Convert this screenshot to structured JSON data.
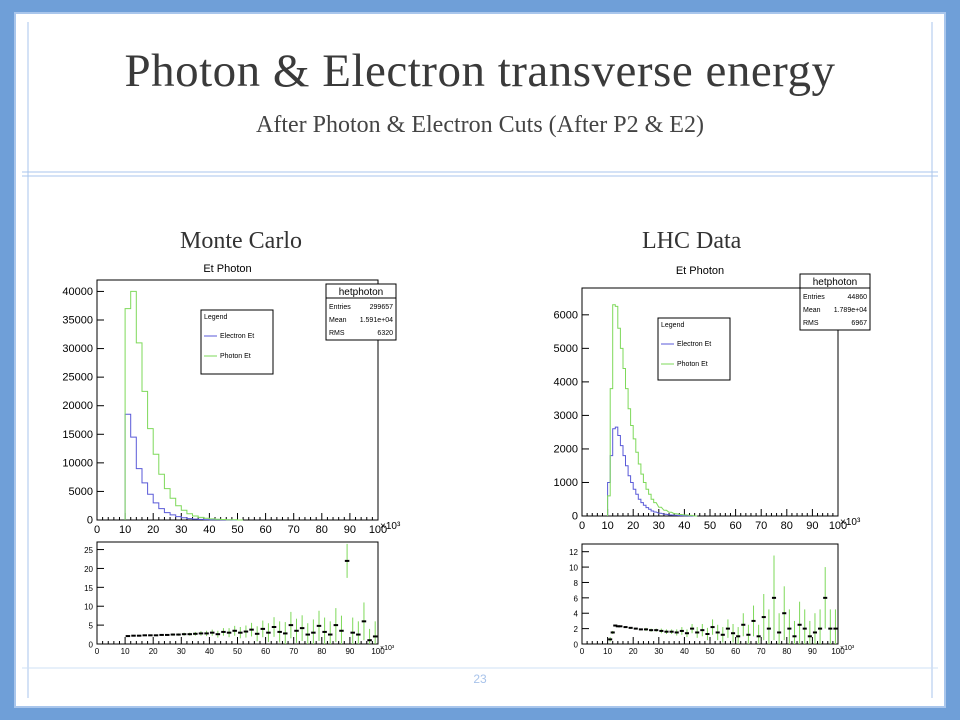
{
  "slide": {
    "title": "Photon & Electron transverse energy",
    "subtitle": "After Photon & Electron Cuts (After P2 & E2)",
    "page_number": "23",
    "colors": {
      "background": "#6f9fd8",
      "electron": "#5a5ad8",
      "photon": "#7ed95a",
      "ratio_points": "#000000"
    }
  },
  "chart_data": [
    {
      "id": "mc-main",
      "caption": "Monte Carlo",
      "type": "line",
      "step": true,
      "title": "Et Photon",
      "stats": {
        "name": "hetphoton",
        "rows": [
          {
            "label": "Entries",
            "value": "299657"
          },
          {
            "label": "Mean",
            "value": "1.591e+04"
          },
          {
            "label": "RMS",
            "value": "6320"
          }
        ]
      },
      "legend": {
        "title": "Legend",
        "position": "upper-middle"
      },
      "x_tick_labels": [
        "0",
        "10",
        "20",
        "30",
        "40",
        "50",
        "60",
        "70",
        "80",
        "90",
        "100"
      ],
      "x_scale_label": "×10³",
      "xlim": [
        0,
        100000
      ],
      "ylim": [
        0,
        42000
      ],
      "y_ticks": [
        0,
        5000,
        10000,
        15000,
        20000,
        25000,
        30000,
        35000,
        40000
      ],
      "bin_width": 2000,
      "series": [
        {
          "name": "Electron Et",
          "x": [
            10000,
            12000,
            14000,
            16000,
            18000,
            20000,
            22000,
            24000,
            26000,
            28000,
            30000,
            32000,
            34000,
            36000,
            38000,
            40000,
            42000,
            44000,
            46000,
            48000,
            50000
          ],
          "values": [
            18500,
            14500,
            9000,
            6500,
            4500,
            3000,
            2000,
            1300,
            900,
            600,
            400,
            250,
            150,
            100,
            70,
            40,
            30,
            20,
            10,
            5,
            0
          ]
        },
        {
          "name": "Photon Et",
          "x": [
            10000,
            12000,
            14000,
            16000,
            18000,
            20000,
            22000,
            24000,
            26000,
            28000,
            30000,
            32000,
            34000,
            36000,
            38000,
            40000,
            42000,
            44000,
            46000,
            48000,
            50000
          ],
          "values": [
            37000,
            40000,
            31000,
            22500,
            16000,
            11500,
            8000,
            5500,
            3800,
            2500,
            1700,
            1100,
            700,
            450,
            300,
            200,
            130,
            80,
            50,
            30,
            0
          ]
        }
      ]
    },
    {
      "id": "mc-ratio",
      "caption": "",
      "type": "scatter",
      "x_tick_labels": [
        "0",
        "10",
        "20",
        "30",
        "40",
        "50",
        "60",
        "70",
        "80",
        "90",
        "100"
      ],
      "x_scale_label": "×10³",
      "xlim": [
        0,
        100000
      ],
      "ylim": [
        0,
        27
      ],
      "y_ticks": [
        0,
        5,
        10,
        15,
        20,
        25
      ],
      "series": [
        {
          "name": "",
          "x": [
            11000,
            13000,
            15000,
            17000,
            19000,
            21000,
            23000,
            25000,
            27000,
            29000,
            31000,
            33000,
            35000,
            37000,
            39000,
            41000,
            43000,
            45000,
            47000,
            49000,
            51000,
            53000,
            55000,
            57000,
            59000,
            61000,
            63000,
            65000,
            67000,
            69000,
            71000,
            73000,
            75000,
            77000,
            79000,
            81000,
            83000,
            85000,
            87000,
            89000,
            91000,
            93000,
            95000,
            97000,
            99000
          ],
          "y": [
            2.1,
            2.2,
            2.2,
            2.3,
            2.3,
            2.3,
            2.4,
            2.4,
            2.5,
            2.5,
            2.6,
            2.6,
            2.7,
            2.8,
            2.8,
            3.0,
            2.6,
            3.2,
            3.0,
            3.5,
            3.0,
            3.3,
            3.8,
            2.7,
            4.0,
            3.0,
            4.5,
            3.2,
            2.8,
            5.0,
            3.5,
            4.2,
            2.5,
            3.0,
            4.8,
            3.2,
            2.5,
            5.0,
            3.5,
            22.0,
            3.0,
            2.5,
            6.0,
            1.0,
            2.0
          ],
          "err": [
            0.1,
            0.1,
            0.1,
            0.1,
            0.1,
            0.2,
            0.2,
            0.2,
            0.3,
            0.3,
            0.4,
            0.4,
            0.5,
            0.6,
            0.7,
            0.8,
            0.9,
            1.0,
            1.2,
            1.3,
            1.5,
            1.6,
            1.8,
            2.0,
            2.2,
            2.5,
            2.6,
            2.8,
            3.0,
            3.5,
            3.2,
            3.4,
            3.0,
            3.5,
            4.0,
            3.8,
            3.5,
            4.5,
            4.0,
            4.5,
            4.0,
            3.5,
            5.0,
            3.0,
            4.0
          ]
        }
      ]
    },
    {
      "id": "lhc-main",
      "caption": "LHC Data",
      "type": "line",
      "step": true,
      "title": "Et Photon",
      "stats": {
        "name": "hetphoton",
        "rows": [
          {
            "label": "Entries",
            "value": "44860"
          },
          {
            "label": "Mean",
            "value": "1.789e+04"
          },
          {
            "label": "RMS",
            "value": "6967"
          }
        ]
      },
      "legend": {
        "title": "Legend",
        "position": "upper-middle"
      },
      "x_tick_labels": [
        "0",
        "10",
        "20",
        "30",
        "40",
        "50",
        "60",
        "70",
        "80",
        "90",
        "100"
      ],
      "x_scale_label": "×10³",
      "xlim": [
        0,
        100000
      ],
      "ylim": [
        0,
        6800
      ],
      "y_ticks": [
        0,
        1000,
        2000,
        3000,
        4000,
        5000,
        6000
      ],
      "bin_width": 1000,
      "series": [
        {
          "name": "Electron Et",
          "x": [
            10000,
            11000,
            12000,
            13000,
            14000,
            15000,
            16000,
            17000,
            18000,
            19000,
            20000,
            21000,
            22000,
            23000,
            24000,
            25000,
            26000,
            27000,
            28000,
            30000,
            32000,
            34000,
            36000,
            38000,
            40000,
            42000,
            44000
          ],
          "values": [
            1000,
            1800,
            2600,
            2650,
            2400,
            2100,
            1800,
            1500,
            1200,
            1000,
            800,
            650,
            500,
            400,
            320,
            250,
            200,
            150,
            120,
            80,
            50,
            30,
            20,
            12,
            8,
            4,
            0
          ]
        },
        {
          "name": "Photon Et",
          "x": [
            10000,
            11000,
            12000,
            13000,
            14000,
            15000,
            16000,
            17000,
            18000,
            19000,
            20000,
            21000,
            22000,
            23000,
            24000,
            25000,
            26000,
            27000,
            28000,
            30000,
            32000,
            34000,
            36000,
            38000,
            40000,
            42000,
            44000
          ],
          "values": [
            600,
            3800,
            6300,
            6250,
            5600,
            5000,
            4400,
            3800,
            3200,
            2700,
            2300,
            1900,
            1550,
            1250,
            1000,
            800,
            650,
            500,
            400,
            260,
            170,
            110,
            70,
            45,
            30,
            18,
            0
          ]
        }
      ]
    },
    {
      "id": "lhc-ratio",
      "caption": "",
      "type": "scatter",
      "x_tick_labels": [
        "0",
        "10",
        "20",
        "30",
        "40",
        "50",
        "60",
        "70",
        "80",
        "90",
        "100"
      ],
      "x_scale_label": "×10³",
      "xlim": [
        0,
        100000
      ],
      "ylim": [
        0,
        13
      ],
      "y_ticks": [
        0,
        2,
        4,
        6,
        8,
        10,
        12
      ],
      "series": [
        {
          "name": "",
          "x": [
            11000,
            12000,
            13000,
            14000,
            15000,
            17000,
            19000,
            21000,
            23000,
            25000,
            27000,
            29000,
            31000,
            33000,
            35000,
            37000,
            39000,
            41000,
            43000,
            45000,
            47000,
            49000,
            51000,
            53000,
            55000,
            57000,
            59000,
            61000,
            63000,
            65000,
            67000,
            69000,
            71000,
            73000,
            75000,
            77000,
            79000,
            81000,
            83000,
            85000,
            87000,
            89000,
            91000,
            93000,
            95000,
            97000,
            99000
          ],
          "y": [
            0.6,
            1.5,
            2.4,
            2.3,
            2.3,
            2.2,
            2.1,
            2.0,
            1.9,
            1.9,
            1.8,
            1.8,
            1.7,
            1.6,
            1.6,
            1.5,
            1.7,
            1.4,
            2.0,
            1.5,
            1.8,
            1.3,
            2.2,
            1.5,
            1.2,
            2.0,
            1.4,
            1.0,
            2.5,
            1.2,
            3.0,
            1.0,
            3.5,
            2.0,
            6.0,
            1.5,
            4.0,
            2.0,
            1.0,
            2.5,
            2.0,
            1.0,
            1.5,
            2.0,
            6.0,
            2.0,
            2.0
          ],
          "err": [
            0.3,
            0.2,
            0.1,
            0.1,
            0.1,
            0.1,
            0.1,
            0.1,
            0.1,
            0.2,
            0.2,
            0.2,
            0.3,
            0.3,
            0.3,
            0.4,
            0.5,
            0.5,
            0.6,
            0.7,
            0.8,
            0.8,
            1.0,
            1.0,
            1.0,
            1.2,
            1.2,
            1.2,
            1.5,
            1.3,
            2.0,
            1.5,
            3.0,
            2.5,
            5.5,
            2.5,
            3.5,
            2.5,
            2.0,
            3.0,
            2.5,
            2.0,
            2.5,
            2.5,
            4.0,
            2.5,
            2.5
          ]
        }
      ]
    }
  ]
}
